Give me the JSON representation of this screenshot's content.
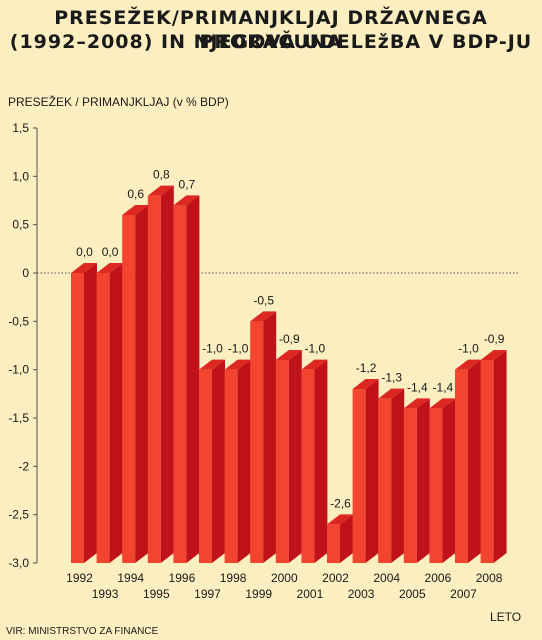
{
  "chart_data": {
    "type": "bar",
    "title": "PRESEŽEK/PRIMANJKLJAJ DRŽAVNEGA PRORAČUNA",
    "subtitle": "(1992–2008) IN NJEGOVA UDELEžBA V BDP-JU",
    "ylabel": "PRESEŽEK / PRIMANJKLJAJ (v % BDP)",
    "xlabel": "LETO",
    "source": "VIR: MINISTRSTVO ZA FINANCE",
    "ylim": [
      -3.0,
      1.5
    ],
    "yticks": [
      1.5,
      1.0,
      0.5,
      0,
      -0.5,
      -1.0,
      -1.5,
      -2.0,
      -2.5,
      -3.0
    ],
    "ytick_labels": [
      "1,5",
      "1,0",
      "0,5",
      "0",
      "-0,5",
      "-1,0",
      "-1,5",
      "-2",
      "-2,5",
      "-3,0"
    ],
    "categories": [
      "1992",
      "1993",
      "1994",
      "1995",
      "1996",
      "1997",
      "1998",
      "1999",
      "2000",
      "2001",
      "2002",
      "2003",
      "2004",
      "2005",
      "2006",
      "2007",
      "2008"
    ],
    "values": [
      0.0,
      0.0,
      0.6,
      0.8,
      0.7,
      -1.0,
      -1.0,
      -0.5,
      -0.9,
      -1.0,
      -2.6,
      -1.2,
      -1.3,
      -1.4,
      -1.4,
      -1.0,
      -0.9
    ],
    "value_labels": [
      "0,0",
      "0,0",
      "0,6",
      "0,8",
      "0,7",
      "-1,0",
      "-1,0",
      "-0,5",
      "-0,9",
      "-1,0",
      "-2,6",
      "-1,2",
      "-1,3",
      "-1,4",
      "-1,4",
      "-1,0",
      "-0,9"
    ],
    "colors": {
      "front": "#f2442e",
      "side": "#c0121a",
      "top": "#dd2822",
      "background": "#fbeec0"
    },
    "zero_line": "dotted"
  }
}
